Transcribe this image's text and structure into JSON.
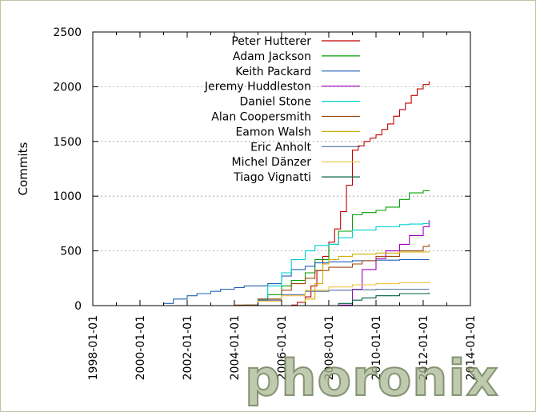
{
  "chart_data": {
    "type": "line",
    "title": "",
    "xlabel": "",
    "ylabel": "Commits",
    "xlim": [
      "1998-01-01",
      "2014-01-01"
    ],
    "ylim": [
      0,
      2500
    ],
    "xticks": [
      "1998-01-01",
      "2000-01-01",
      "2002-01-01",
      "2004-01-01",
      "2006-01-01",
      "2008-01-01",
      "2010-01-01",
      "2012-01-01",
      "2014-01-01"
    ],
    "yticks": [
      0,
      500,
      1000,
      1500,
      2000,
      2500
    ],
    "grid": "horizontal dotted",
    "legend_position": "top-center",
    "series": [
      {
        "name": "Peter Hutterer",
        "color": "#c00000",
        "x": [
          "2006-06-01",
          "2006-09-01",
          "2007-01-01",
          "2007-04-01",
          "2007-07-01",
          "2007-10-01",
          "2008-01-01",
          "2008-04-01",
          "2008-07-01",
          "2008-10-01",
          "2009-01-01",
          "2009-04-01",
          "2009-07-01",
          "2009-10-01",
          "2010-01-01",
          "2010-04-01",
          "2010-07-01",
          "2010-10-01",
          "2011-01-01",
          "2011-04-01",
          "2011-07-01",
          "2011-10-01",
          "2012-01-01",
          "2012-04-01"
        ],
        "values": [
          5,
          30,
          80,
          180,
          320,
          450,
          580,
          700,
          860,
          1100,
          1420,
          1460,
          1500,
          1530,
          1560,
          1610,
          1660,
          1730,
          1790,
          1850,
          1920,
          1980,
          2020,
          2050
        ]
      },
      {
        "name": "Adam Jackson",
        "color": "#00a000",
        "x": [
          "2004-06-01",
          "2005-01-01",
          "2005-06-01",
          "2006-01-01",
          "2006-06-01",
          "2007-01-01",
          "2007-06-01",
          "2008-01-01",
          "2008-06-01",
          "2009-01-01",
          "2009-06-01",
          "2010-01-01",
          "2010-06-01",
          "2011-01-01",
          "2011-06-01",
          "2012-01-01",
          "2012-04-01"
        ],
        "values": [
          5,
          50,
          100,
          180,
          230,
          300,
          420,
          560,
          680,
          830,
          850,
          870,
          900,
          970,
          1030,
          1050,
          1055
        ]
      },
      {
        "name": "Keith Packard",
        "color": "#2060b8",
        "x": [
          "1998-06-01",
          "2000-06-01",
          "2001-01-01",
          "2001-06-01",
          "2002-01-01",
          "2002-06-01",
          "2003-01-01",
          "2003-06-01",
          "2004-01-01",
          "2004-06-01",
          "2005-06-01",
          "2006-01-01",
          "2006-06-01",
          "2007-01-01",
          "2007-06-01",
          "2008-01-01",
          "2009-01-01",
          "2010-01-01",
          "2011-01-01",
          "2012-04-01"
        ],
        "values": [
          0,
          0,
          20,
          60,
          90,
          110,
          130,
          150,
          165,
          180,
          200,
          270,
          330,
          360,
          390,
          400,
          410,
          415,
          420,
          420
        ]
      },
      {
        "name": "Jeremy Huddleston",
        "color": "#a000c0",
        "x": [
          "2008-06-01",
          "2009-01-01",
          "2009-06-01",
          "2010-01-01",
          "2010-06-01",
          "2011-01-01",
          "2011-06-01",
          "2012-01-01",
          "2012-04-01"
        ],
        "values": [
          5,
          150,
          330,
          430,
          500,
          560,
          640,
          720,
          780
        ]
      },
      {
        "name": "Daniel Stone",
        "color": "#00d0d0",
        "x": [
          "2004-06-01",
          "2005-01-01",
          "2005-06-01",
          "2006-01-01",
          "2006-06-01",
          "2007-01-01",
          "2007-06-01",
          "2008-01-01",
          "2008-06-01",
          "2009-01-01",
          "2010-01-01",
          "2011-01-01",
          "2011-06-01",
          "2012-01-01",
          "2012-04-01"
        ],
        "values": [
          0,
          60,
          180,
          300,
          420,
          500,
          550,
          560,
          620,
          690,
          720,
          740,
          745,
          750,
          750
        ]
      },
      {
        "name": "Alan Coopersmith",
        "color": "#9a4a10",
        "x": [
          "2004-01-01",
          "2005-01-01",
          "2006-01-01",
          "2006-06-01",
          "2007-01-01",
          "2007-06-01",
          "2008-01-01",
          "2009-01-01",
          "2009-06-01",
          "2010-01-01",
          "2011-01-01",
          "2012-01-01",
          "2012-04-01"
        ],
        "values": [
          5,
          60,
          140,
          200,
          250,
          320,
          350,
          380,
          410,
          450,
          500,
          540,
          560
        ]
      },
      {
        "name": "Eamon Walsh",
        "color": "#d0b000",
        "x": [
          "2006-06-01",
          "2007-01-01",
          "2007-06-01",
          "2007-10-01",
          "2008-01-01",
          "2008-06-01",
          "2009-01-01",
          "2010-01-01",
          "2011-01-01",
          "2012-04-01"
        ],
        "values": [
          0,
          60,
          200,
          380,
          420,
          450,
          470,
          480,
          490,
          495
        ]
      },
      {
        "name": "Eric Anholt",
        "color": "#5070a0",
        "x": [
          "2004-01-01",
          "2005-01-01",
          "2006-01-01",
          "2007-01-01",
          "2008-01-01",
          "2009-01-01",
          "2010-01-01",
          "2011-01-01",
          "2012-04-01"
        ],
        "values": [
          0,
          50,
          100,
          130,
          140,
          145,
          150,
          150,
          150
        ]
      },
      {
        "name": "Michel Dänzer",
        "color": "#f0c040",
        "x": [
          "2004-01-01",
          "2005-01-01",
          "2006-01-01",
          "2007-01-01",
          "2008-01-01",
          "2009-01-01",
          "2010-01-01",
          "2011-01-01",
          "2012-04-01"
        ],
        "values": [
          0,
          40,
          90,
          140,
          170,
          190,
          200,
          210,
          220
        ]
      },
      {
        "name": "Tiago Vignatti",
        "color": "#006040",
        "x": [
          "2008-01-01",
          "2008-06-01",
          "2009-01-01",
          "2009-06-01",
          "2010-01-01",
          "2011-01-01",
          "2012-04-01"
        ],
        "values": [
          0,
          20,
          50,
          70,
          90,
          110,
          120
        ]
      }
    ]
  },
  "watermark": "phoronix"
}
